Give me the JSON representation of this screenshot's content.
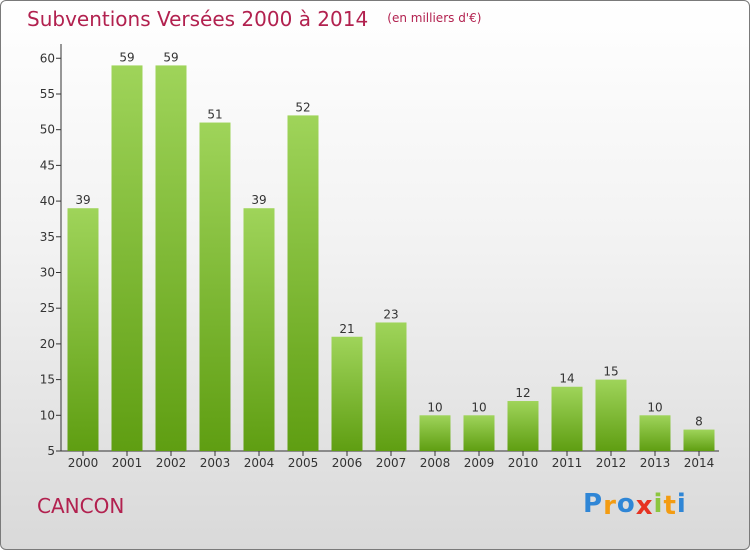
{
  "chart_data": {
    "type": "bar",
    "title": "Subventions Versées 2000 à 2014",
    "subtitle": "(en milliers d'€)",
    "categories": [
      "2000",
      "2001",
      "2002",
      "2003",
      "2004",
      "2005",
      "2006",
      "2007",
      "2008",
      "2009",
      "2010",
      "2011",
      "2012",
      "2013",
      "2014"
    ],
    "values": [
      39,
      59,
      59,
      51,
      39,
      52,
      21,
      23,
      10,
      10,
      12,
      14,
      15,
      10,
      8
    ],
    "ylim": [
      5,
      62
    ],
    "yticks": [
      5,
      10,
      15,
      20,
      25,
      30,
      35,
      40,
      45,
      50,
      55,
      60
    ],
    "xlabel": "",
    "ylabel": "",
    "grid": false,
    "bar_color_top": "#9fd45a",
    "bar_color_bottom": "#5f9e12"
  },
  "footer": {
    "commune": "CANCON",
    "logo_letters": [
      "P",
      "r",
      "o",
      "x",
      "i",
      "t",
      "i"
    ],
    "logo_colors": [
      "#2f86d6",
      "#f39c12",
      "#2f86d6",
      "#e63322",
      "#8cc63f",
      "#f39c12",
      "#2f86d6"
    ]
  },
  "colors": {
    "title": "#b2214f"
  }
}
